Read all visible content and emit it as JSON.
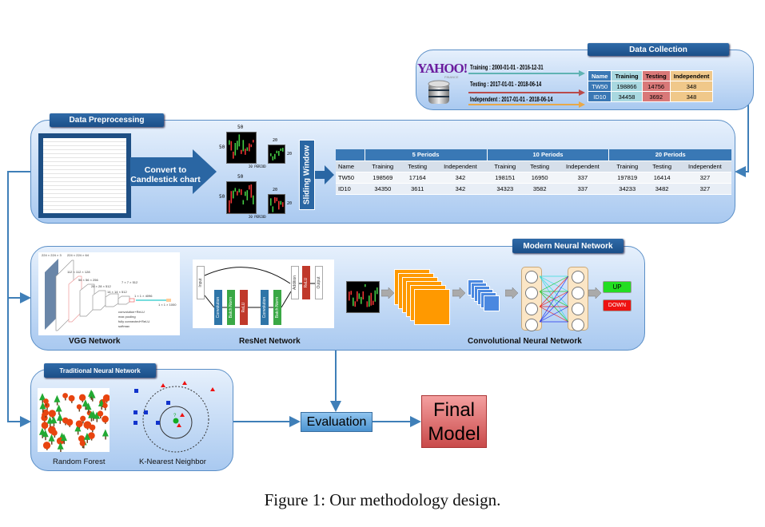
{
  "data_collection": {
    "title": "Data Collection",
    "logo": {
      "text": "YAHOO!",
      "sub": "FINANCE"
    },
    "periods": [
      {
        "label": "Training : 2000-01-01  - 2016-12-31",
        "color": "#5fb3b3"
      },
      {
        "label": "Testing : 2017-01-01  - 2018-06-14",
        "color": "#b94a4a"
      },
      {
        "label": "Independent  : 2017-01-01  - 2018-06-14",
        "color": "#e8a848"
      }
    ],
    "table": {
      "headers": [
        "Name",
        "Training",
        "Testing",
        "Independent"
      ],
      "rows": [
        [
          "TW50",
          "198866",
          "14756",
          "348"
        ],
        [
          "ID10",
          "34458",
          "3692",
          "348"
        ]
      ]
    }
  },
  "preprocessing": {
    "title": "Data Preprocessing",
    "convert_label": "Convert to Candlestick chart",
    "thumbs": {
      "big": "50",
      "small": "20",
      "caption": "20 PERIOD"
    },
    "sliding_window": "Sliding Window",
    "table": {
      "groups": [
        "5 Periods",
        "10 Periods",
        "20 Periods"
      ],
      "headers": [
        "Name",
        "Training",
        "Testing",
        "Independent",
        "Training",
        "Testing",
        "Independent",
        "Training",
        "Testing",
        "Independent"
      ],
      "rows": [
        [
          "TW50",
          "198569",
          "17164",
          "342",
          "198151",
          "16950",
          "337",
          "197819",
          "16414",
          "327"
        ],
        [
          "ID10",
          "34350",
          "3611",
          "342",
          "34323",
          "3582",
          "337",
          "34233",
          "3482",
          "327"
        ]
      ]
    }
  },
  "modern": {
    "title": "Modern Neural Network",
    "vgg": {
      "label": "VGG Network",
      "legend": [
        "convolution+ReLU",
        "max pooling",
        "fully connected+ReLU",
        "softmax"
      ],
      "dims": [
        "224 × 224 × 3",
        "224 × 224 × 64",
        "112 × 112 × 128",
        "56 × 56 × 256",
        "28 × 28 × 512",
        "14 × 14 × 512",
        "7 × 7 × 512",
        "1 × 1 × 4096",
        "1 × 1 × 1000"
      ]
    },
    "resnet": {
      "label": "ResNet Network",
      "blocks": [
        "Input",
        "Convolution",
        "Batch Norm",
        "ReLU",
        "Convolution",
        "Batch Norm",
        "Addition",
        "ReLU",
        "Output"
      ]
    },
    "cnn": {
      "label": "Convolutional Neural Network",
      "up": "UP",
      "down": "DOWN"
    }
  },
  "traditional": {
    "title": "Traditional Neural Network",
    "rf_label": "Random Forest",
    "knn_label": "K-Nearest Neighbor",
    "knn_query": "?"
  },
  "evaluation": "Evaluation",
  "final_model": [
    "Final",
    "Model"
  ],
  "caption": "Figure 1: Our methodology design.",
  "colors": {
    "panel_border": "#5b8fc7",
    "tab": "#1b4f88",
    "connector": "#3f7fb8",
    "final": "#c94a4a",
    "up": "#22dd22",
    "down": "#ee1111"
  }
}
